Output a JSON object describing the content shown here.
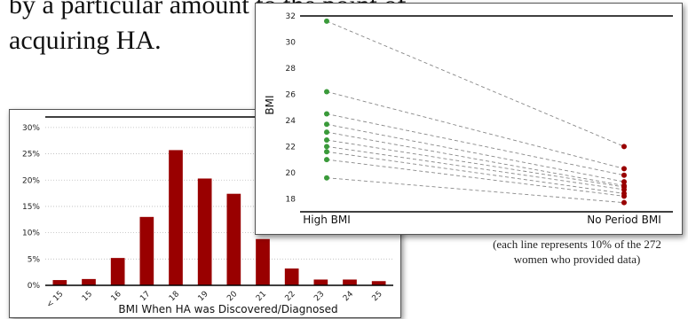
{
  "slide": {
    "lines": [
      "by a particular amount to the point of",
      "acquiring HA."
    ]
  },
  "caption": "(each line represents 10% of the 272 women who provided data)",
  "chart_data": [
    {
      "type": "bar",
      "title": "",
      "xlabel": "BMI When HA was Discovered/Diagnosed",
      "ylabel": "",
      "categories": [
        "< 15",
        "15",
        "16",
        "17",
        "18",
        "19",
        "20",
        "21",
        "22",
        "23",
        "24",
        "25"
      ],
      "values": [
        1,
        1.2,
        5.2,
        13,
        25.7,
        20.3,
        17.4,
        8.8,
        3.2,
        1.1,
        1.1,
        0.8
      ],
      "ylim": [
        0,
        32
      ],
      "yticks": [
        "0%",
        "5%",
        "10%",
        "15%",
        "20%",
        "25%",
        "30%"
      ],
      "bar_color": "#990000",
      "grid": true
    },
    {
      "type": "line",
      "title": "",
      "xlabel": "",
      "ylabel": "BMI",
      "categories": [
        "High BMI",
        "No Period BMI"
      ],
      "ylim": [
        17,
        32
      ],
      "yticks": [
        18,
        20,
        22,
        24,
        26,
        28,
        30,
        32
      ],
      "high_color": "#3a9a3a",
      "low_color": "#990000",
      "line_color": "#888888",
      "pairs": [
        [
          31.6,
          22.0
        ],
        [
          26.2,
          20.3
        ],
        [
          24.5,
          19.8
        ],
        [
          23.7,
          19.3
        ],
        [
          23.1,
          19.0
        ],
        [
          22.5,
          18.9
        ],
        [
          22.0,
          18.7
        ],
        [
          21.6,
          18.4
        ],
        [
          21.0,
          18.2
        ],
        [
          19.6,
          17.7
        ]
      ]
    }
  ]
}
